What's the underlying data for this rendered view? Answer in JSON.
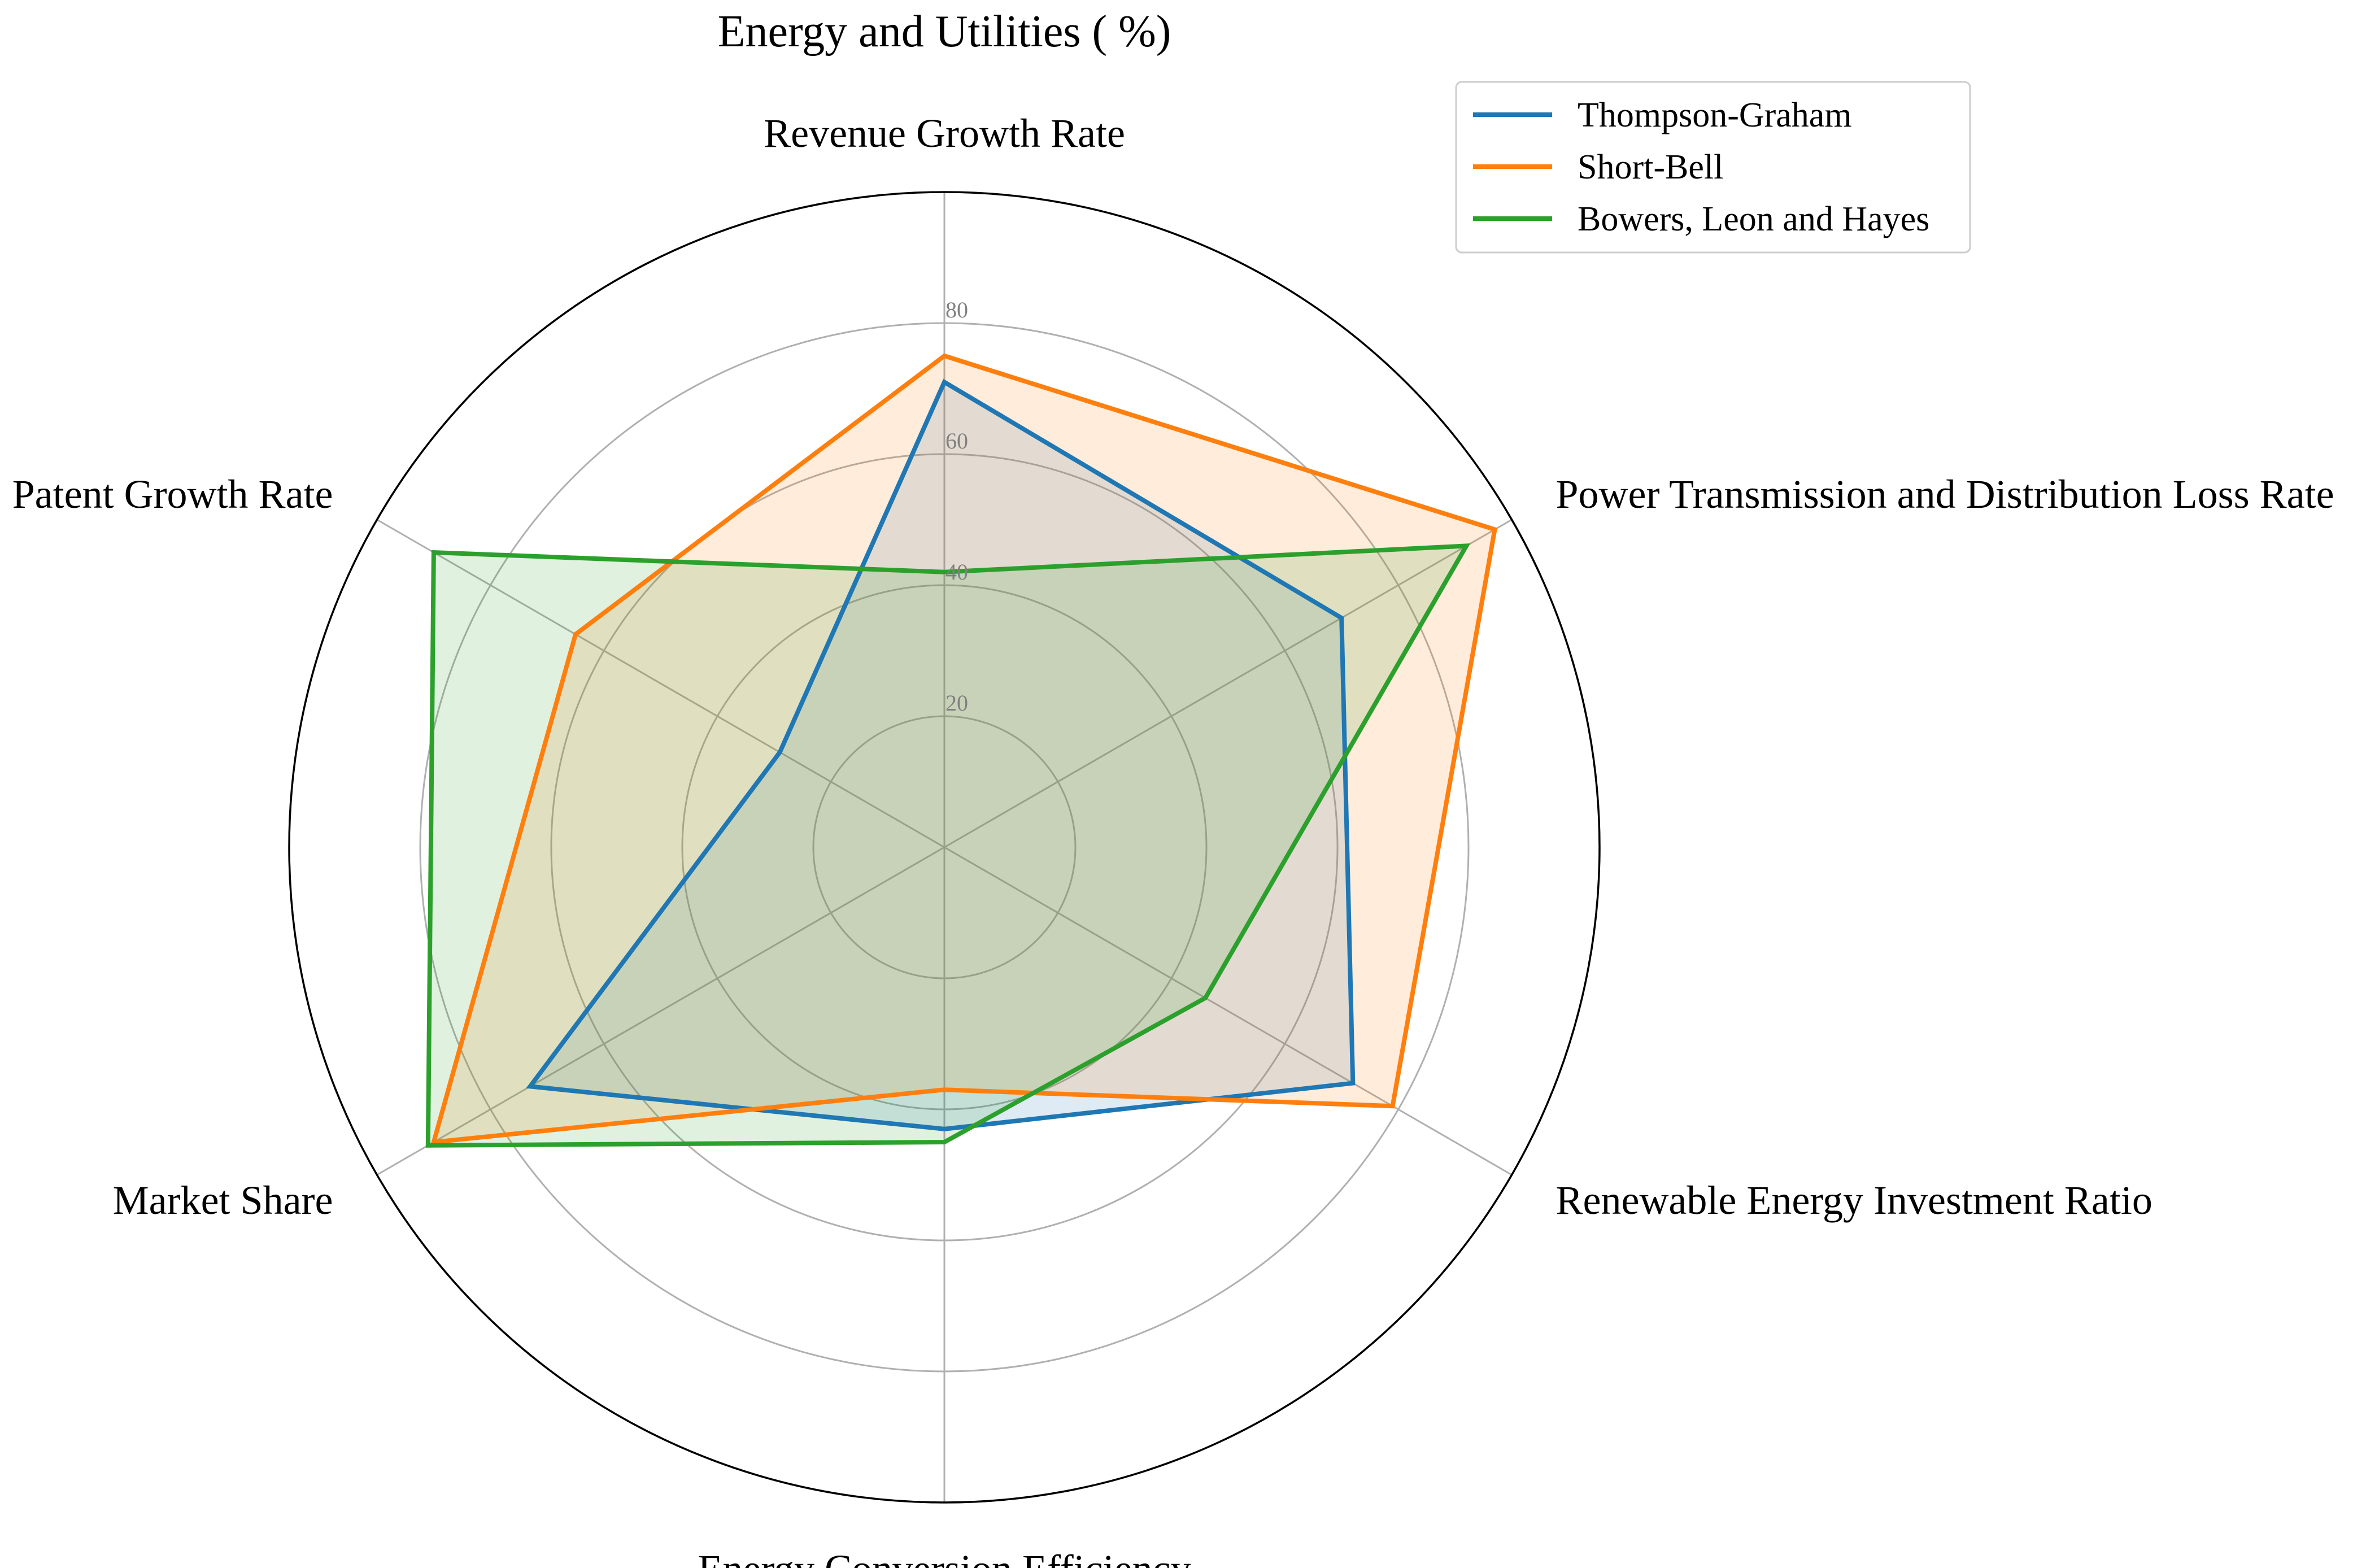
{
  "chart_data": {
    "type": "radar",
    "title": "Energy and Utilities ( %)",
    "axes": [
      "Revenue Growth Rate",
      "Power Transmission and Distribution Loss Rate",
      "Renewable Energy Investment Ratio",
      "Energy Conversion Efficiency",
      "Market Share",
      "Patent Growth Rate"
    ],
    "rlim": [
      0,
      100
    ],
    "ticks": [
      20,
      40,
      60,
      80
    ],
    "tick_labels": [
      "20",
      "40",
      "60",
      "80"
    ],
    "grid": true,
    "legend_position": "top-right",
    "series": [
      {
        "name": "Thompson-Graham",
        "color": "#1f77b4",
        "values": [
          71,
          70,
          72,
          43,
          73,
          29
        ]
      },
      {
        "name": "Short-Bell",
        "color": "#ff7f0e",
        "values": [
          75,
          97,
          79,
          37,
          90,
          65
        ]
      },
      {
        "name": "Bowers, Leon and Hayes",
        "color": "#2ca02c",
        "values": [
          42,
          92,
          46,
          45,
          91,
          90
        ]
      }
    ]
  }
}
